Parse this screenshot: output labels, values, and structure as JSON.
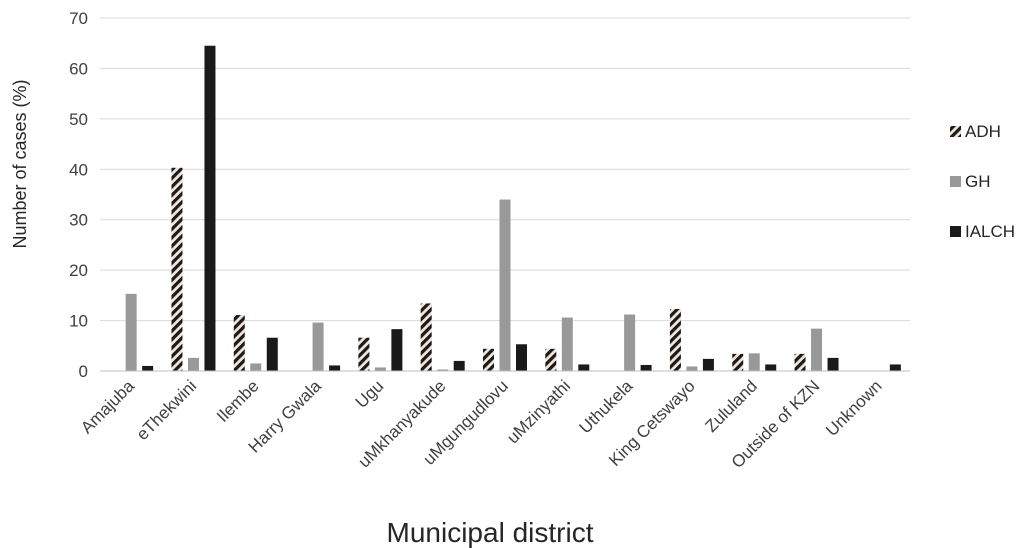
{
  "chart_data": {
    "type": "bar",
    "title": "",
    "xlabel": "Municipal district",
    "ylabel": "Number of cases (%)",
    "ylim": [
      0,
      70
    ],
    "yticks": [
      0,
      10,
      20,
      30,
      40,
      50,
      60,
      70
    ],
    "grid": true,
    "legend_position": "right",
    "categories": [
      "Amajuba",
      "eThekwini",
      "Ilembe",
      "Harry Gwala",
      "Ugu",
      "uMkhanyakude",
      "uMgungudlovu",
      "uMzinyathi",
      "Uthukela",
      "King Cetswayo",
      "Zululand",
      "Outside of KZN",
      "Unknown"
    ],
    "series": [
      {
        "name": "ADH",
        "color": "#1a1a1a",
        "pattern": "diagonal-hatch",
        "values": [
          0,
          40.3,
          11.1,
          0,
          6.6,
          13.4,
          4.4,
          4.4,
          0,
          12.3,
          3.4,
          3.4,
          0
        ]
      },
      {
        "name": "GH",
        "color": "#999999",
        "pattern": "solid",
        "values": [
          15.3,
          2.6,
          1.5,
          9.6,
          0.7,
          0.3,
          34.0,
          10.6,
          11.2,
          0.9,
          3.5,
          8.4,
          0
        ]
      },
      {
        "name": "IALCH",
        "color": "#1a1a1a",
        "pattern": "solid",
        "values": [
          1.0,
          64.5,
          6.6,
          1.1,
          8.3,
          2.0,
          5.3,
          1.3,
          1.2,
          2.4,
          1.3,
          2.6,
          1.3
        ]
      }
    ]
  }
}
